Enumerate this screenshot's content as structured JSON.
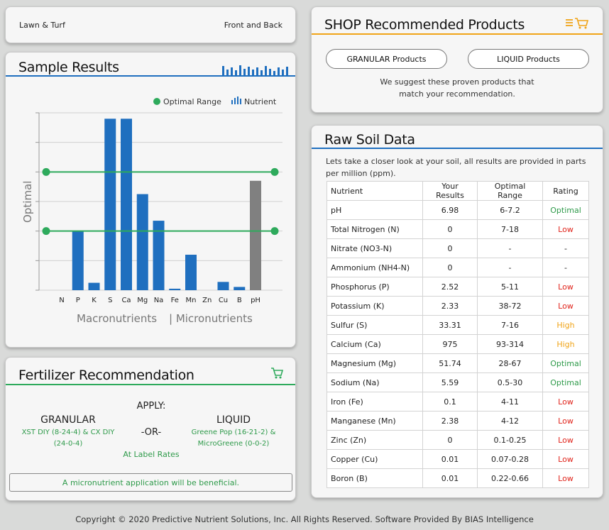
{
  "topbar": {
    "left": "Lawn & Turf",
    "right": "Front and Back"
  },
  "sample": {
    "title": "Sample Results",
    "legend_optimal": "Optimal Range",
    "legend_nutrient": "Nutrient",
    "ylabel": "Optimal",
    "macro_label": "Macronutrients",
    "micro_label": "| Micronutrients"
  },
  "chart_data": {
    "type": "bar",
    "categories": [
      "N",
      "P",
      "K",
      "S",
      "Ca",
      "Mg",
      "Na",
      "Fe",
      "Mn",
      "Zn",
      "Cu",
      "B",
      "pH"
    ],
    "values": [
      0,
      20,
      2.5,
      58,
      58,
      32.5,
      23.5,
      0.5,
      12,
      0,
      2.8,
      1.1,
      37
    ],
    "optimal_range": [
      20,
      40
    ],
    "ylabel": "Optimal",
    "ylim": [
      0,
      60
    ],
    "grid": true,
    "colors": {
      "bar": "#1f6fbf",
      "ph_bar": "#808080",
      "optimal": "#2eaa5c"
    }
  },
  "fert": {
    "title": "Fertilizer Recommendation",
    "apply": "APPLY:",
    "granular_title": "GRANULAR",
    "granular_products": "XST DIY (8-24-4) & CX DIY (24-0-4)",
    "or": "-OR-",
    "at_label": "At Label Rates",
    "liquid_title": "LIQUID",
    "liquid_products": "Greene Pop (16-21-2) & MicroGreene (0-0-2)",
    "note": "A micronutrient application will be beneficial."
  },
  "shop": {
    "title": "SHOP Recommended Products",
    "granular_btn": "GRANULAR Products",
    "liquid_btn": "LIQUID Products",
    "desc": "We suggest these proven products that match your recommendation."
  },
  "raw": {
    "title": "Raw Soil Data",
    "intro": "Lets take a closer look at your soil, all results are provided in parts per million (ppm).",
    "headers": [
      "Nutrient",
      "Your Results",
      "Optimal Range",
      "Rating"
    ],
    "rows": [
      [
        "pH",
        "6.98",
        "6-7.2",
        "Optimal"
      ],
      [
        "Total Nitrogen (N)",
        "0",
        "7-18",
        "Low"
      ],
      [
        "Nitrate (NO3-N)",
        "0",
        "-",
        "-"
      ],
      [
        "Ammonium (NH4-N)",
        "0",
        "-",
        "-"
      ],
      [
        "Phosphorus (P)",
        "2.52",
        "5-11",
        "Low"
      ],
      [
        "Potassium (K)",
        "2.33",
        "38-72",
        "Low"
      ],
      [
        "Sulfur (S)",
        "33.31",
        "7-16",
        "High"
      ],
      [
        "Calcium (Ca)",
        "975",
        "93-314",
        "High"
      ],
      [
        "Magnesium (Mg)",
        "51.74",
        "28-67",
        "Optimal"
      ],
      [
        "Sodium (Na)",
        "5.59",
        "0.5-30",
        "Optimal"
      ],
      [
        "Iron (Fe)",
        "0.1",
        "4-11",
        "Low"
      ],
      [
        "Manganese (Mn)",
        "2.38",
        "4-12",
        "Low"
      ],
      [
        "Zinc (Zn)",
        "0",
        "0.1-0.25",
        "Low"
      ],
      [
        "Copper (Cu)",
        "0.01",
        "0.07-0.28",
        "Low"
      ],
      [
        "Boron (B)",
        "0.01",
        "0.22-0.66",
        "Low"
      ]
    ]
  },
  "footer": "Copyright © 2020 Predictive Nutrient Solutions, Inc. All Rights Reserved. Software Provided By BIAS Intelligence"
}
